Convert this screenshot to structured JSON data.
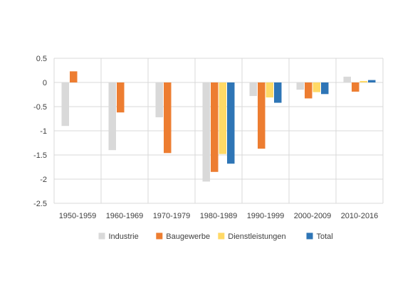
{
  "chart_data": {
    "type": "bar",
    "categories": [
      "1950-1959",
      "1960-1969",
      "1970-1979",
      "1980-1989",
      "1990-1999",
      "2000-2009",
      "2010-2016"
    ],
    "series": [
      {
        "name": "Industrie",
        "color": "#d9d9d9",
        "values": [
          -0.9,
          -1.4,
          -0.72,
          -2.05,
          -0.28,
          -0.15,
          0.12
        ]
      },
      {
        "name": "Baugewerbe",
        "color": "#ed7d31",
        "values": [
          0.23,
          -0.62,
          -1.46,
          -1.85,
          -1.37,
          -0.33,
          -0.19
        ]
      },
      {
        "name": "Dienstleistungen",
        "color": "#ffd966",
        "values": [
          null,
          null,
          null,
          -1.48,
          -0.31,
          -0.2,
          0.03
        ]
      },
      {
        "name": "Total",
        "color": "#2e75b6",
        "values": [
          null,
          null,
          null,
          -1.68,
          -0.42,
          -0.24,
          0.05
        ]
      }
    ],
    "y_ticks": [
      "0.5",
      "0",
      "-0.5",
      "-1",
      "-1.5",
      "-2",
      "-2.5"
    ],
    "ylim": [
      -2.5,
      0.5
    ],
    "grid": true,
    "legend_position": "bottom"
  }
}
